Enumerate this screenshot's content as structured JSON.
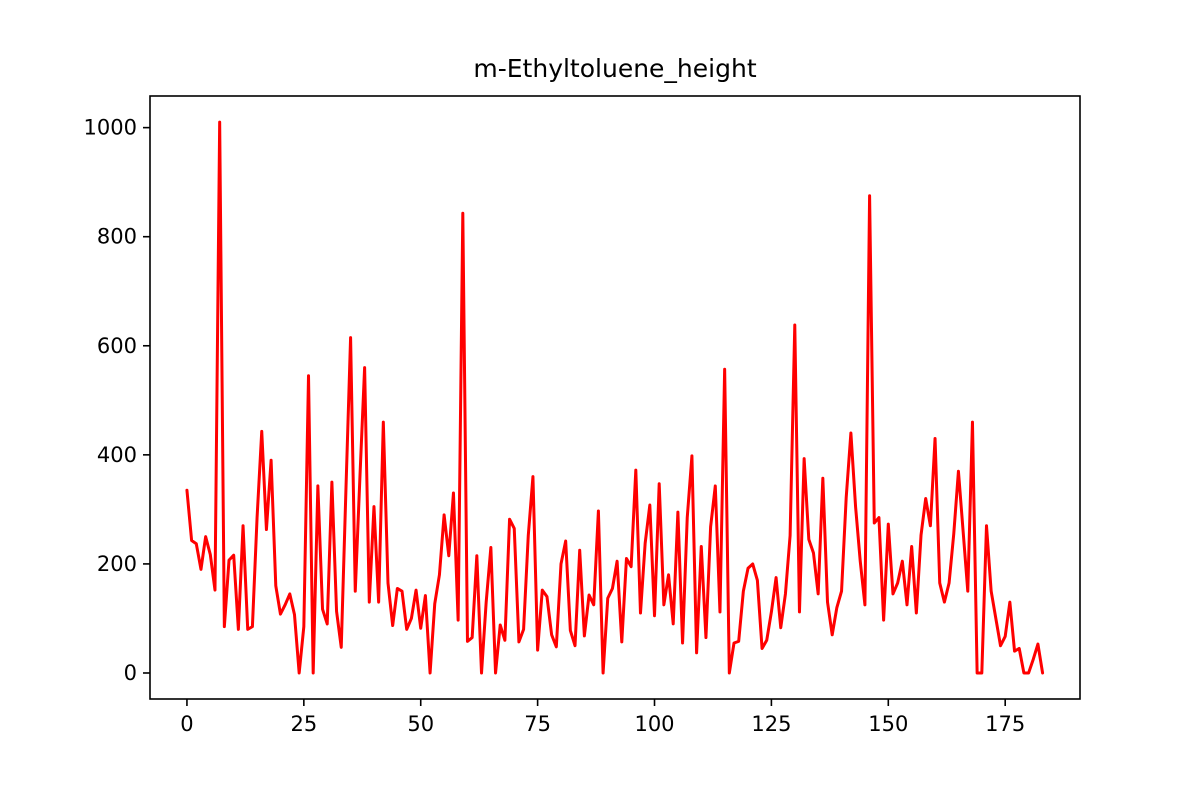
{
  "chart_data": {
    "type": "line",
    "title": "m-Ethyltoluene_height",
    "xlabel": "",
    "ylabel": "",
    "xlim": [
      -7.9,
      191.0
    ],
    "ylim": [
      -47.7,
      1058.0
    ],
    "x_ticks": [
      0,
      25,
      50,
      75,
      100,
      125,
      150,
      175
    ],
    "y_ticks": [
      0,
      200,
      400,
      600,
      800,
      1000
    ],
    "grid": false,
    "legend": "none",
    "colors": {
      "line": "#ff0000",
      "axes": "#000000",
      "background": "#ffffff"
    },
    "series": [
      {
        "x": [
          0,
          1,
          2,
          3,
          4,
          5,
          6,
          7,
          8,
          9,
          10,
          11,
          12,
          13,
          14,
          15,
          16,
          17,
          18,
          19,
          20,
          21,
          22,
          23,
          24,
          25,
          26,
          27,
          28,
          29,
          30,
          31,
          32,
          33,
          34,
          35,
          36,
          37,
          38,
          39,
          40,
          41,
          42,
          43,
          44,
          45,
          46,
          47,
          48,
          49,
          50,
          51,
          52,
          53,
          54,
          55,
          56,
          57,
          58,
          59,
          60,
          61,
          62,
          63,
          64,
          65,
          66,
          67,
          68,
          69,
          70,
          71,
          72,
          73,
          74,
          75,
          76,
          77,
          78,
          79,
          80,
          81,
          82,
          83,
          84,
          85,
          86,
          87,
          88,
          89,
          90,
          91,
          92,
          93,
          94,
          95,
          96,
          97,
          98,
          99,
          100,
          101,
          102,
          103,
          104,
          105,
          106,
          107,
          108,
          109,
          110,
          111,
          112,
          113,
          114,
          115,
          116,
          117,
          118,
          119,
          120,
          121,
          122,
          123,
          124,
          125,
          126,
          127,
          128,
          129,
          130,
          131,
          132,
          133,
          134,
          135,
          136,
          137,
          138,
          139,
          140,
          141,
          142,
          143,
          144,
          145,
          146,
          147,
          148,
          149,
          150,
          151,
          152,
          153,
          154,
          155,
          156,
          157,
          158,
          159,
          160,
          161,
          162,
          163,
          164,
          165,
          166,
          167,
          168,
          169,
          170,
          171,
          172,
          173,
          174,
          175,
          176,
          177,
          178,
          179,
          180,
          181,
          182,
          183
        ],
        "y": [
          335,
          243,
          237,
          190,
          250,
          217,
          152,
          1010,
          85,
          207,
          216,
          80,
          270,
          80,
          85,
          285,
          443,
          263,
          390,
          160,
          108,
          125,
          145,
          107,
          0,
          85,
          545,
          0,
          343,
          117,
          90,
          350,
          113,
          47,
          335,
          615,
          150,
          360,
          560,
          130,
          305,
          130,
          460,
          165,
          87,
          155,
          150,
          80,
          100,
          152,
          82,
          142,
          0,
          127,
          180,
          290,
          215,
          330,
          97,
          843,
          58,
          65,
          215,
          0,
          130,
          230,
          0,
          88,
          60,
          282,
          265,
          57,
          80,
          252,
          360,
          42,
          152,
          140,
          70,
          48,
          200,
          242,
          78,
          50,
          225,
          68,
          143,
          125,
          297,
          0,
          137,
          155,
          205,
          57,
          210,
          195,
          372,
          110,
          238,
          308,
          105,
          347,
          125,
          180,
          90,
          295,
          55,
          285,
          398,
          37,
          232,
          65,
          268,
          343,
          112,
          557,
          0,
          55,
          58,
          150,
          192,
          200,
          170,
          45,
          60,
          112,
          175,
          83,
          145,
          252,
          638,
          112,
          393,
          245,
          220,
          145,
          357,
          130,
          70,
          120,
          150,
          322,
          440,
          305,
          205,
          125,
          875,
          275,
          285,
          97,
          273,
          145,
          165,
          205,
          125,
          232,
          110,
          253,
          320,
          270,
          430,
          165,
          130,
          165,
          255,
          370,
          260,
          150,
          460,
          0,
          0,
          270,
          150,
          100,
          50,
          67,
          130,
          40,
          45,
          0,
          0,
          25,
          53,
          0
        ]
      }
    ]
  }
}
